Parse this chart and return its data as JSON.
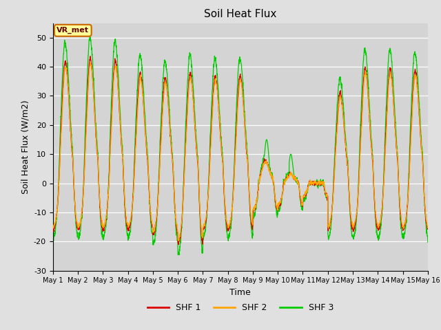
{
  "title": "Soil Heat Flux",
  "xlabel": "Time",
  "ylabel": "Soil Heat Flux (W/m2)",
  "ylim": [
    -30,
    55
  ],
  "yticks": [
    -30,
    -20,
    -10,
    0,
    10,
    20,
    30,
    40,
    50
  ],
  "background_color": "#e0e0e0",
  "plot_bg_color": "#d4d4d4",
  "grid_color": "#ffffff",
  "colors": {
    "SHF 1": "#dd0000",
    "SHF 2": "#ffa500",
    "SHF 3": "#00cc00"
  },
  "legend_label": "VR_met",
  "n_days": 15,
  "pts_per_day": 144,
  "series_names": [
    "SHF 1",
    "SHF 2",
    "SHF 3"
  ],
  "xtick_labels": [
    "May 1",
    "May 2",
    "May 3",
    "May 4",
    "May 5",
    "May 6",
    "May 7",
    "May 8",
    "May 9",
    "May 10",
    "May 11",
    "May 12",
    "May 13",
    "May 14",
    "May 15",
    "May 16"
  ]
}
